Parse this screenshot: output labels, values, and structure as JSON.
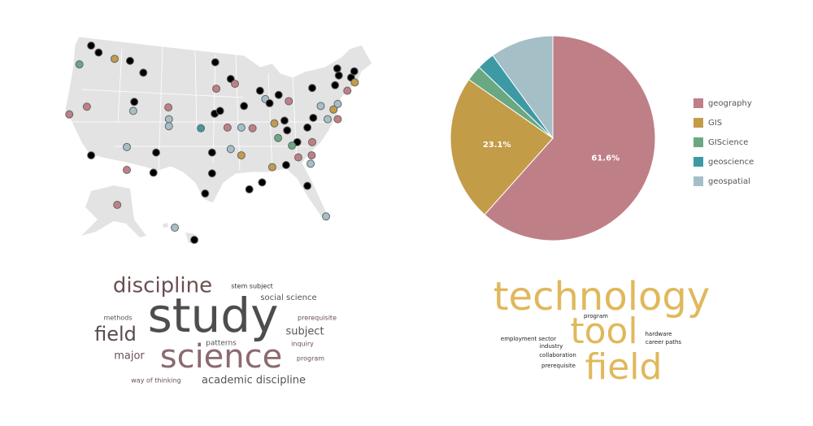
{
  "map": {
    "points": [
      {
        "lat": 47.7,
        "lon": -120.1,
        "color": "#000000"
      },
      {
        "lat": 45.0,
        "lon": -122.3,
        "color": "#6aa882"
      },
      {
        "lat": 46.7,
        "lon": -118.7,
        "color": "#000000"
      },
      {
        "lat": 45.8,
        "lon": -115.7,
        "color": "#c39c48"
      },
      {
        "lat": 45.5,
        "lon": -112.8,
        "color": "#000000"
      },
      {
        "lat": 43.8,
        "lon": -110.3,
        "color": "#000000"
      },
      {
        "lat": 45.3,
        "lon": -96.8,
        "color": "#000000"
      },
      {
        "lat": 42.9,
        "lon": -93.9,
        "color": "#000000"
      },
      {
        "lat": 41.5,
        "lon": -96.6,
        "color": "#bf7f87"
      },
      {
        "lat": 42.2,
        "lon": -93.1,
        "color": "#bf7f87"
      },
      {
        "lat": 41.2,
        "lon": -88.4,
        "color": "#000000"
      },
      {
        "lat": 40.6,
        "lon": -84.9,
        "color": "#000000"
      },
      {
        "lat": 38.9,
        "lon": -120.9,
        "color": "#bf7f87"
      },
      {
        "lat": 37.8,
        "lon": -124.2,
        "color": "#bf7f87"
      },
      {
        "lat": 39.6,
        "lon": -112.0,
        "color": "#000000"
      },
      {
        "lat": 38.3,
        "lon": -112.2,
        "color": "#a5bfc7"
      },
      {
        "lat": 38.8,
        "lon": -105.6,
        "color": "#bf7f87"
      },
      {
        "lat": 37.1,
        "lon": -105.5,
        "color": "#a5bfc7"
      },
      {
        "lat": 36.1,
        "lon": -105.5,
        "color": "#a5bfc7"
      },
      {
        "lat": 35.8,
        "lon": -99.5,
        "color": "#3d9aa5"
      },
      {
        "lat": 35.9,
        "lon": -94.5,
        "color": "#bf7f87"
      },
      {
        "lat": 35.9,
        "lon": -91.9,
        "color": "#a5bfc7"
      },
      {
        "lat": 35.8,
        "lon": -89.8,
        "color": "#bf7f87"
      },
      {
        "lat": 37.9,
        "lon": -96.9,
        "color": "#000000"
      },
      {
        "lat": 38.3,
        "lon": -95.9,
        "color": "#000000"
      },
      {
        "lat": 39.0,
        "lon": -91.4,
        "color": "#000000"
      },
      {
        "lat": 40.0,
        "lon": -87.4,
        "color": "#a5bfc7"
      },
      {
        "lat": 39.4,
        "lon": -86.6,
        "color": "#000000"
      },
      {
        "lat": 39.7,
        "lon": -83.0,
        "color": "#bf7f87"
      },
      {
        "lat": 41.6,
        "lon": -78.6,
        "color": "#000000"
      },
      {
        "lat": 39.0,
        "lon": -77.0,
        "color": "#a5bfc7"
      },
      {
        "lat": 38.5,
        "lon": -74.6,
        "color": "#c39c48"
      },
      {
        "lat": 37.1,
        "lon": -73.8,
        "color": "#bf7f87"
      },
      {
        "lat": 37.1,
        "lon": -75.7,
        "color": "#a5bfc7"
      },
      {
        "lat": 37.3,
        "lon": -78.4,
        "color": "#000000"
      },
      {
        "lat": 36.9,
        "lon": -83.8,
        "color": "#000000"
      },
      {
        "lat": 36.5,
        "lon": -85.7,
        "color": "#c39c48"
      },
      {
        "lat": 35.5,
        "lon": -83.3,
        "color": "#000000"
      },
      {
        "lat": 35.9,
        "lon": -79.5,
        "color": "#000000"
      },
      {
        "lat": 33.8,
        "lon": -81.4,
        "color": "#000000"
      },
      {
        "lat": 33.8,
        "lon": -78.6,
        "color": "#bf7f87"
      },
      {
        "lat": 33.3,
        "lon": -82.4,
        "color": "#6aa882"
      },
      {
        "lat": 34.4,
        "lon": -85.0,
        "color": "#6aa882"
      },
      {
        "lat": 33.1,
        "lon": -113.4,
        "color": "#a5bfc7"
      },
      {
        "lat": 29.8,
        "lon": -113.4,
        "color": "#bf7f87"
      },
      {
        "lat": 31.9,
        "lon": -120.1,
        "color": "#000000"
      },
      {
        "lat": 32.3,
        "lon": -107.9,
        "color": "#000000"
      },
      {
        "lat": 29.4,
        "lon": -108.4,
        "color": "#000000"
      },
      {
        "lat": 32.3,
        "lon": -97.4,
        "color": "#000000"
      },
      {
        "lat": 29.3,
        "lon": -97.4,
        "color": "#000000"
      },
      {
        "lat": 32.8,
        "lon": -93.9,
        "color": "#a5bfc7"
      },
      {
        "lat": 31.9,
        "lon": -91.9,
        "color": "#c39c48"
      },
      {
        "lat": 30.2,
        "lon": -86.1,
        "color": "#c39c48"
      },
      {
        "lat": 30.5,
        "lon": -83.5,
        "color": "#000000"
      },
      {
        "lat": 31.6,
        "lon": -81.2,
        "color": "#bf7f87"
      },
      {
        "lat": 30.7,
        "lon": -78.9,
        "color": "#a5bfc7"
      },
      {
        "lat": 31.9,
        "lon": -78.7,
        "color": "#bf7f87"
      },
      {
        "lat": 28.0,
        "lon": -88.0,
        "color": "#000000"
      },
      {
        "lat": 27.0,
        "lon": -90.4,
        "color": "#000000"
      },
      {
        "lat": 26.4,
        "lon": -98.7,
        "color": "#000000"
      },
      {
        "lat": 27.5,
        "lon": -79.5,
        "color": "#000000"
      },
      {
        "lat": 23.1,
        "lon": -76.0,
        "color": "#a5bfc7"
      },
      {
        "lat": 43.1,
        "lon": -71.3,
        "color": "#000000"
      },
      {
        "lat": 42.4,
        "lon": -70.6,
        "color": "#c39c48"
      },
      {
        "lat": 43.4,
        "lon": -73.6,
        "color": "#000000"
      },
      {
        "lat": 44.4,
        "lon": -73.9,
        "color": "#000000"
      },
      {
        "lat": 44.0,
        "lon": -70.7,
        "color": "#000000"
      },
      {
        "lat": 41.2,
        "lon": -72.0,
        "color": "#bf7f87"
      },
      {
        "lat": 39.3,
        "lon": -73.8,
        "color": "#a5bfc7"
      },
      {
        "lat": 42.0,
        "lon": -74.3,
        "color": "#000000"
      },
      {
        "lat": 61.2,
        "lon": -149.9,
        "color": "#bf7f87"
      },
      {
        "lat": 21.3,
        "lon": -157.8,
        "color": "#a5bfc7"
      },
      {
        "lat": 19.7,
        "lon": -155.1,
        "color": "#000000"
      }
    ]
  },
  "chart_data": {
    "type": "pie",
    "categories": [
      "geography",
      "GIS",
      "GIScience",
      "geoscience",
      "geospatial"
    ],
    "values": [
      61.6,
      23.1,
      2.5,
      2.8,
      10.0
    ],
    "value_labels": [
      "61.6%",
      "23.1%",
      null,
      null,
      null
    ],
    "colors": [
      "#bf7f87",
      "#c39c48",
      "#6aa882",
      "#3d9aa5",
      "#a5bfc7"
    ],
    "legend": "right"
  },
  "wordclouds": [
    {
      "words": [
        {
          "text": "discipline",
          "size": 26,
          "color": "#6b4f52"
        },
        {
          "text": "stem subject",
          "size": 8,
          "color": "#333333"
        },
        {
          "text": "social science",
          "size": 10,
          "color": "#555555"
        },
        {
          "text": "methods",
          "size": 8,
          "color": "#555555"
        },
        {
          "text": "study",
          "size": 58,
          "color": "#4d4d4d"
        },
        {
          "text": "prerequisite",
          "size": 8,
          "color": "#6b4f52"
        },
        {
          "text": "field",
          "size": 24,
          "color": "#5a4b4d"
        },
        {
          "text": "subject",
          "size": 13,
          "color": "#555555"
        },
        {
          "text": "patterns",
          "size": 9,
          "color": "#555555"
        },
        {
          "text": "inquiry",
          "size": 8,
          "color": "#6b4f52"
        },
        {
          "text": "major",
          "size": 13,
          "color": "#6b4f52"
        },
        {
          "text": "science",
          "size": 40,
          "color": "#8b6a6e"
        },
        {
          "text": "program",
          "size": 8,
          "color": "#6b4f52"
        },
        {
          "text": "way of thinking",
          "size": 8,
          "color": "#6b4f52"
        },
        {
          "text": "academic discipline",
          "size": 13,
          "color": "#555555"
        }
      ]
    },
    {
      "words": [
        {
          "text": "technology",
          "size": 48,
          "color": "#e0b85c"
        },
        {
          "text": "program",
          "size": 7,
          "color": "#222222"
        },
        {
          "text": "tool",
          "size": 44,
          "color": "#e0b85c"
        },
        {
          "text": "employment sector",
          "size": 7,
          "color": "#222222"
        },
        {
          "text": "hardware",
          "size": 7,
          "color": "#222222"
        },
        {
          "text": "industry",
          "size": 7,
          "color": "#222222"
        },
        {
          "text": "career paths",
          "size": 7,
          "color": "#222222"
        },
        {
          "text": "collaboration",
          "size": 7,
          "color": "#222222"
        },
        {
          "text": "prerequisite",
          "size": 7,
          "color": "#222222"
        },
        {
          "text": "field",
          "size": 44,
          "color": "#e0b85c"
        }
      ]
    }
  ]
}
